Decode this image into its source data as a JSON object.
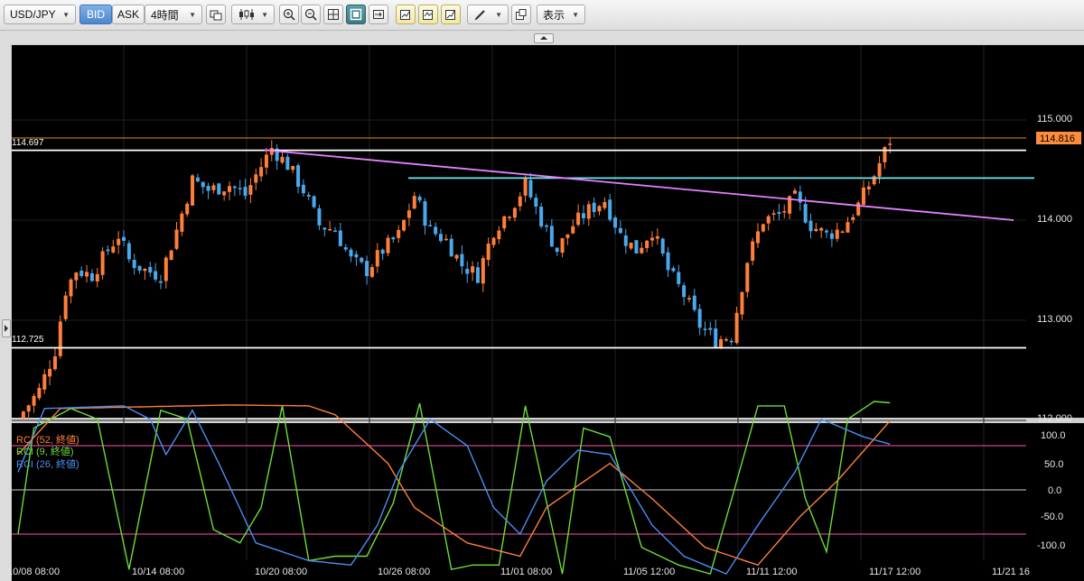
{
  "toolbar": {
    "symbol": "USD/JPY",
    "bid_label": "BID",
    "ask_label": "ASK",
    "timeframe": "4時間",
    "view_label": "表示"
  },
  "price_chart": {
    "yticks": [
      "115.000",
      "114.000",
      "113.000",
      "112.000"
    ],
    "current_price": "114.816",
    "hline_upper_label": "114.697",
    "hline_lower_label": "112.725",
    "colors": {
      "up": "#ff7f3a",
      "down": "#4aa8ec",
      "resistance": "#ffffff",
      "support_cyan": "#6fe6f2",
      "trendline": "#e680ff",
      "price_line": "#c8860b"
    }
  },
  "rci": {
    "legend": [
      "RCI (52, 終値)",
      "RCI (9, 終値)",
      "RCI (26, 終値)"
    ],
    "colors": [
      "#ff7f3a",
      "#6ddc3a",
      "#4a8ef0"
    ],
    "yticks": [
      "100.0",
      "50.0",
      "0.0",
      "-50.0",
      "-100.0"
    ]
  },
  "xaxis": {
    "labels": [
      "10/08 08:00",
      "10/14 08:00",
      "10/20 08:00",
      "10/26 08:00",
      "11/01 08:00",
      "11/05 12:00",
      "11/11 12:00",
      "11/17 12:00",
      "11/21 16"
    ]
  },
  "chart_data": [
    {
      "type": "candlestick",
      "title": "",
      "ylim": [
        112.0,
        115.6
      ],
      "markers": {
        "hline_upper": 114.697,
        "hline_lower": 112.725,
        "hline_cyan": 114.42,
        "last_price": 114.816
      },
      "close_path": [
        [
          0,
          112.02
        ],
        [
          4,
          112.3
        ],
        [
          7,
          112.7
        ],
        [
          9,
          113.3
        ],
        [
          11,
          113.5
        ],
        [
          14,
          113.45
        ],
        [
          17,
          113.7
        ],
        [
          19,
          113.85
        ],
        [
          21,
          113.6
        ],
        [
          24,
          113.5
        ],
        [
          27,
          113.45
        ],
        [
          30,
          113.9
        ],
        [
          33,
          114.4
        ],
        [
          36,
          114.3
        ],
        [
          40,
          114.35
        ],
        [
          43,
          114.25
        ],
        [
          45,
          114.45
        ],
        [
          48,
          114.72
        ],
        [
          51,
          114.55
        ],
        [
          54,
          114.3
        ],
        [
          57,
          113.95
        ],
        [
          60,
          113.9
        ],
        [
          63,
          113.6
        ],
        [
          66,
          113.5
        ],
        [
          69,
          113.7
        ],
        [
          72,
          113.85
        ],
        [
          75,
          114.25
        ],
        [
          78,
          113.9
        ],
        [
          81,
          113.8
        ],
        [
          84,
          113.55
        ],
        [
          87,
          113.45
        ],
        [
          90,
          113.9
        ],
        [
          93,
          114.1
        ],
        [
          96,
          114.35
        ],
        [
          99,
          114.0
        ],
        [
          102,
          113.7
        ],
        [
          105,
          113.95
        ],
        [
          108,
          114.1
        ],
        [
          111,
          114.2
        ],
        [
          114,
          113.85
        ],
        [
          117,
          113.7
        ],
        [
          120,
          113.9
        ],
        [
          123,
          113.5
        ],
        [
          126,
          113.25
        ],
        [
          129,
          112.95
        ],
        [
          132,
          112.8
        ],
        [
          135,
          112.85
        ],
        [
          138,
          113.6
        ],
        [
          141,
          114.0
        ],
        [
          144,
          114.05
        ],
        [
          147,
          114.22
        ],
        [
          150,
          113.95
        ],
        [
          153,
          113.85
        ],
        [
          156,
          113.92
        ],
        [
          159,
          114.15
        ],
        [
          162,
          114.45
        ],
        [
          165,
          114.8
        ]
      ]
    },
    {
      "type": "line",
      "title": "",
      "ylim": [
        -100,
        100
      ],
      "series": [
        {
          "name": "RCI (52, 終値)",
          "points": [
            [
              0,
              40
            ],
            [
              8,
              92
            ],
            [
              40,
              96
            ],
            [
              55,
              95
            ],
            [
              60,
              85
            ],
            [
              70,
              30
            ],
            [
              75,
              -20
            ],
            [
              85,
              -60
            ],
            [
              95,
              -75
            ],
            [
              100,
              -20
            ],
            [
              112,
              30
            ],
            [
              120,
              -10
            ],
            [
              130,
              -65
            ],
            [
              140,
              -85
            ],
            [
              148,
              -30
            ],
            [
              155,
              10
            ],
            [
              165,
              78
            ]
          ]
        },
        {
          "name": "RCI (9, 終値)",
          "points": [
            [
              0,
              -50
            ],
            [
              3,
              70
            ],
            [
              10,
              92
            ],
            [
              15,
              80
            ],
            [
              21,
              -90
            ],
            [
              27,
              90
            ],
            [
              32,
              80
            ],
            [
              37,
              -45
            ],
            [
              42,
              -60
            ],
            [
              46,
              -20
            ],
            [
              50,
              95
            ],
            [
              55,
              -80
            ],
            [
              60,
              -75
            ],
            [
              66,
              -75
            ],
            [
              71,
              -15
            ],
            [
              76,
              98
            ],
            [
              82,
              -90
            ],
            [
              86,
              -85
            ],
            [
              91,
              -85
            ],
            [
              96,
              95
            ],
            [
              103,
              -95
            ],
            [
              107,
              70
            ],
            [
              112,
              60
            ],
            [
              118,
              -65
            ],
            [
              125,
              -85
            ],
            [
              131,
              -95
            ],
            [
              136,
              10
            ],
            [
              140,
              95
            ],
            [
              145,
              95
            ],
            [
              149,
              -10
            ],
            [
              153,
              -70
            ],
            [
              157,
              80
            ],
            [
              162,
              100
            ],
            [
              166,
              98
            ]
          ]
        },
        {
          "name": "RCI (26, 終値)",
          "points": [
            [
              0,
              20
            ],
            [
              5,
              92
            ],
            [
              20,
              95
            ],
            [
              25,
              80
            ],
            [
              28,
              40
            ],
            [
              33,
              90
            ],
            [
              38,
              30
            ],
            [
              45,
              -60
            ],
            [
              55,
              -80
            ],
            [
              63,
              -85
            ],
            [
              68,
              -40
            ],
            [
              72,
              20
            ],
            [
              78,
              80
            ],
            [
              85,
              50
            ],
            [
              90,
              -20
            ],
            [
              95,
              -50
            ],
            [
              100,
              10
            ],
            [
              106,
              45
            ],
            [
              112,
              40
            ],
            [
              120,
              -40
            ],
            [
              126,
              -75
            ],
            [
              134,
              -95
            ],
            [
              140,
              -40
            ],
            [
              147,
              20
            ],
            [
              152,
              80
            ],
            [
              160,
              60
            ],
            [
              166,
              50
            ]
          ]
        }
      ]
    }
  ]
}
